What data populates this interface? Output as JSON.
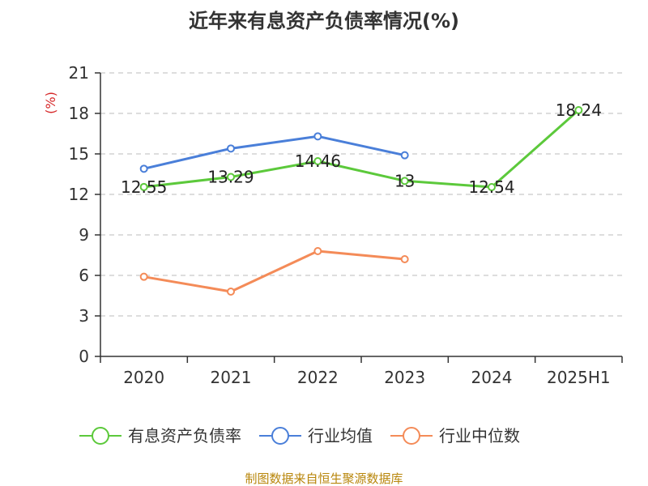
{
  "chart_data": {
    "type": "line",
    "title": "近年来有息资产负债率情况(%)",
    "ylabel": "(%)",
    "xlabel": "",
    "categories": [
      "2020",
      "2021",
      "2022",
      "2023",
      "2024",
      "2025H1"
    ],
    "ylim": [
      0,
      21
    ],
    "yticks": [
      0,
      3,
      6,
      9,
      12,
      15,
      18,
      21
    ],
    "grid": true,
    "legend_position": "bottom",
    "series": [
      {
        "name": "有息资产负债率",
        "color": "#5cc93b",
        "values": [
          12.55,
          13.29,
          14.46,
          13,
          12.54,
          18.24
        ],
        "labels": [
          "12.55",
          "13.29",
          "14.46",
          "13",
          "12.54",
          "18.24"
        ]
      },
      {
        "name": "行业均值",
        "color": "#4a7fd9",
        "values": [
          13.9,
          15.4,
          16.3,
          14.9,
          null,
          null
        ]
      },
      {
        "name": "行业中位数",
        "color": "#f48b58",
        "values": [
          5.9,
          4.8,
          7.8,
          7.2,
          null,
          null
        ]
      }
    ]
  },
  "source_note": "制图数据来自恒生聚源数据库"
}
